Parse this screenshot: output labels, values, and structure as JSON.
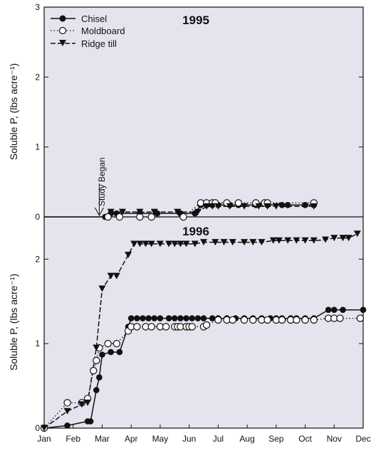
{
  "chart_data": [
    {
      "type": "line",
      "title": "1995",
      "ylabel": "Soluble P, (lbs acre⁻¹)",
      "ylim": [
        0,
        3
      ],
      "yticks": [
        0,
        1,
        2,
        3
      ],
      "annotation": "Study Began",
      "annotation_x": 1.9,
      "legend": "top-left",
      "series": [
        {
          "name": "Chisel",
          "marker": "filled-circle",
          "line": "solid",
          "x": [
            2.1,
            2.3,
            2.5,
            3.3,
            3.9,
            4.7,
            5.2,
            5.4,
            5.6,
            5.8,
            6.0,
            6.4,
            6.7,
            7.3,
            7.7,
            8.2,
            8.4,
            9.0,
            9.3
          ],
          "y": [
            0.0,
            0.05,
            0.05,
            0.05,
            0.05,
            0.05,
            0.05,
            0.17,
            0.17,
            0.17,
            0.17,
            0.17,
            0.17,
            0.17,
            0.17,
            0.17,
            0.17,
            0.17,
            0.17
          ]
        },
        {
          "name": "Moldboard",
          "marker": "open-circle",
          "line": "dotted",
          "x": [
            2.2,
            2.6,
            3.3,
            3.7,
            4.8,
            5.4,
            5.6,
            5.8,
            5.9,
            6.3,
            6.7,
            7.3,
            7.6,
            7.7,
            9.3
          ],
          "y": [
            0.0,
            0.0,
            0.0,
            0.0,
            0.0,
            0.2,
            0.2,
            0.2,
            0.2,
            0.2,
            0.2,
            0.2,
            0.2,
            0.2,
            0.2
          ]
        },
        {
          "name": "Ridge till",
          "marker": "filled-triangle-down",
          "line": "dashed",
          "x": [
            2.3,
            2.7,
            3.3,
            3.8,
            4.6,
            5.3,
            5.6,
            5.8,
            6.0,
            6.4,
            6.9,
            7.4,
            7.7,
            8.0,
            9.3
          ],
          "y": [
            0.07,
            0.07,
            0.07,
            0.07,
            0.07,
            0.07,
            0.15,
            0.15,
            0.15,
            0.15,
            0.15,
            0.15,
            0.15,
            0.15,
            0.15
          ]
        }
      ]
    },
    {
      "type": "line",
      "title": "1996",
      "ylabel": "Soluble P, (lbs acre⁻¹)",
      "ylim": [
        0,
        2.5
      ],
      "yticks": [
        0,
        1,
        2
      ],
      "xlabels": [
        "Jan",
        "Feb",
        "Mar",
        "Apr",
        "May",
        "Jun",
        "Jul",
        "Aug",
        "Sep",
        "Oct",
        "Nov",
        "Dec"
      ],
      "series": [
        {
          "name": "Chisel",
          "marker": "filled-circle",
          "line": "solid",
          "x": [
            0.0,
            0.8,
            1.5,
            1.6,
            1.8,
            1.9,
            2.0,
            2.3,
            2.6,
            2.9,
            3.0,
            3.2,
            3.4,
            3.6,
            3.8,
            4.0,
            4.3,
            4.5,
            4.7,
            4.9,
            5.1,
            5.3,
            5.5,
            5.8,
            6.0,
            6.3,
            6.6,
            6.9,
            7.2,
            7.5,
            7.8,
            8.0,
            8.2,
            8.5,
            8.7,
            9.0,
            9.3,
            9.8,
            10.0,
            10.3,
            11.0
          ],
          "y": [
            0.0,
            0.03,
            0.08,
            0.08,
            0.45,
            0.6,
            0.87,
            0.9,
            0.9,
            1.2,
            1.3,
            1.3,
            1.3,
            1.3,
            1.3,
            1.3,
            1.3,
            1.3,
            1.3,
            1.3,
            1.3,
            1.3,
            1.3,
            1.3,
            1.3,
            1.3,
            1.3,
            1.3,
            1.3,
            1.3,
            1.3,
            1.3,
            1.3,
            1.3,
            1.3,
            1.3,
            1.3,
            1.4,
            1.4,
            1.4,
            1.4
          ]
        },
        {
          "name": "Moldboard",
          "marker": "open-circle",
          "line": "dotted",
          "x": [
            0.0,
            0.8,
            1.3,
            1.5,
            1.7,
            1.8,
            1.9,
            2.2,
            2.5,
            2.9,
            3.0,
            3.2,
            3.5,
            3.7,
            4.0,
            4.2,
            4.5,
            4.6,
            4.7,
            4.9,
            5.0,
            5.1,
            5.5,
            5.6,
            6.0,
            6.3,
            6.5,
            6.9,
            7.2,
            7.5,
            7.7,
            8.0,
            8.2,
            8.5,
            8.7,
            9.0,
            9.3,
            9.8,
            10.0,
            10.2,
            10.9
          ],
          "y": [
            0.0,
            0.3,
            0.3,
            0.35,
            0.68,
            0.8,
            0.95,
            1.0,
            1.0,
            1.15,
            1.2,
            1.2,
            1.2,
            1.2,
            1.2,
            1.2,
            1.2,
            1.2,
            1.2,
            1.2,
            1.2,
            1.2,
            1.2,
            1.22,
            1.28,
            1.28,
            1.28,
            1.28,
            1.28,
            1.28,
            1.28,
            1.28,
            1.28,
            1.28,
            1.28,
            1.28,
            1.28,
            1.3,
            1.3,
            1.3,
            1.3
          ]
        },
        {
          "name": "Ridge till",
          "marker": "filled-triangle-down",
          "line": "dashed",
          "x": [
            0.0,
            0.8,
            1.3,
            1.5,
            1.8,
            2.0,
            2.3,
            2.5,
            2.9,
            3.1,
            3.3,
            3.5,
            3.7,
            4.0,
            4.3,
            4.5,
            4.7,
            4.9,
            5.2,
            5.5,
            5.9,
            6.2,
            6.5,
            6.9,
            7.2,
            7.5,
            7.9,
            8.1,
            8.4,
            8.7,
            9.0,
            9.3,
            9.7,
            10.0,
            10.3,
            10.5,
            10.8
          ],
          "y": [
            0.0,
            0.2,
            0.28,
            0.3,
            0.95,
            1.65,
            1.8,
            1.8,
            2.05,
            2.18,
            2.18,
            2.18,
            2.18,
            2.18,
            2.18,
            2.18,
            2.18,
            2.18,
            2.18,
            2.2,
            2.2,
            2.2,
            2.2,
            2.2,
            2.2,
            2.2,
            2.22,
            2.22,
            2.22,
            2.22,
            2.22,
            2.22,
            2.23,
            2.25,
            2.25,
            2.25,
            2.3
          ]
        }
      ]
    }
  ],
  "colors": {
    "background": "#e5e3ee",
    "ink": "#111111"
  }
}
